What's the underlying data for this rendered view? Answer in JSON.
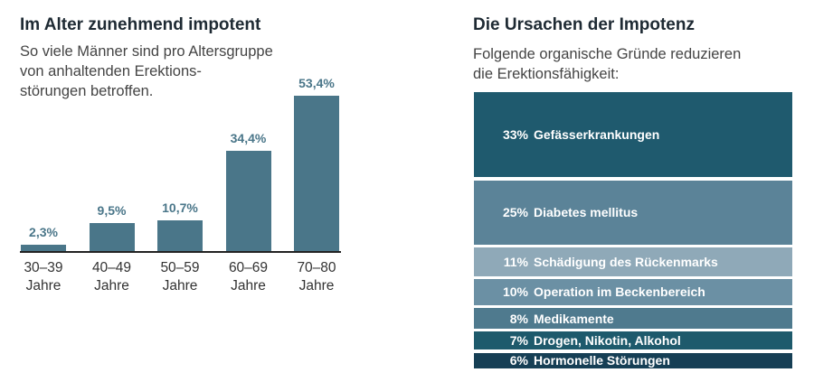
{
  "left": {
    "title": "Im Alter zunehmend impotent",
    "subtitle_lines": [
      "So viele Männer sind pro Altersgruppe",
      "von anhaltenden Erektions-",
      "störungen betroffen."
    ]
  },
  "right": {
    "title": "Die Ursachen der Impotenz",
    "subtitle_lines": [
      "Folgende organische Gründe reduzieren",
      "die Erektionsfähigkeit:"
    ]
  },
  "chart_data": [
    {
      "type": "bar",
      "title": "Im Alter zunehmend impotent",
      "categories": [
        [
          "30–39",
          "Jahre"
        ],
        [
          "40–49",
          "Jahre"
        ],
        [
          "50–59",
          "Jahre"
        ],
        [
          "60–69",
          "Jahre"
        ],
        [
          "70–80",
          "Jahre"
        ]
      ],
      "values": [
        2.3,
        9.5,
        10.7,
        34.4,
        53.4
      ],
      "value_labels": [
        "2,3%",
        "9,5%",
        "10,7%",
        "34,4%",
        "53,4%"
      ],
      "unit": "%",
      "color": "#4a7689",
      "grid": false
    },
    {
      "type": "bar",
      "stacked": true,
      "title": "Die Ursachen der Impotenz",
      "segments": [
        {
          "pct_label": "33%",
          "label": "Gefässerkrankungen",
          "value": 33,
          "color": "#1f5a6e"
        },
        {
          "pct_label": "25%",
          "label": "Diabetes mellitus",
          "value": 25,
          "color": "#5b8398"
        },
        {
          "pct_label": "11%",
          "label": "Schädigung des Rückenmarks",
          "value": 11,
          "color": "#8fa9b8"
        },
        {
          "pct_label": "10%",
          "label": "Operation im Beckenbereich",
          "value": 10,
          "color": "#6b90a4"
        },
        {
          "pct_label": "8%",
          "label": "Medikamente",
          "value": 8,
          "color": "#4f7a8e"
        },
        {
          "pct_label": "7%",
          "label": "Drogen, Nikotin, Alkohol",
          "value": 7,
          "color": "#1e5a6c"
        },
        {
          "pct_label": "6%",
          "label": "Hormonelle Störungen",
          "value": 6,
          "color": "#163f55"
        }
      ]
    }
  ]
}
